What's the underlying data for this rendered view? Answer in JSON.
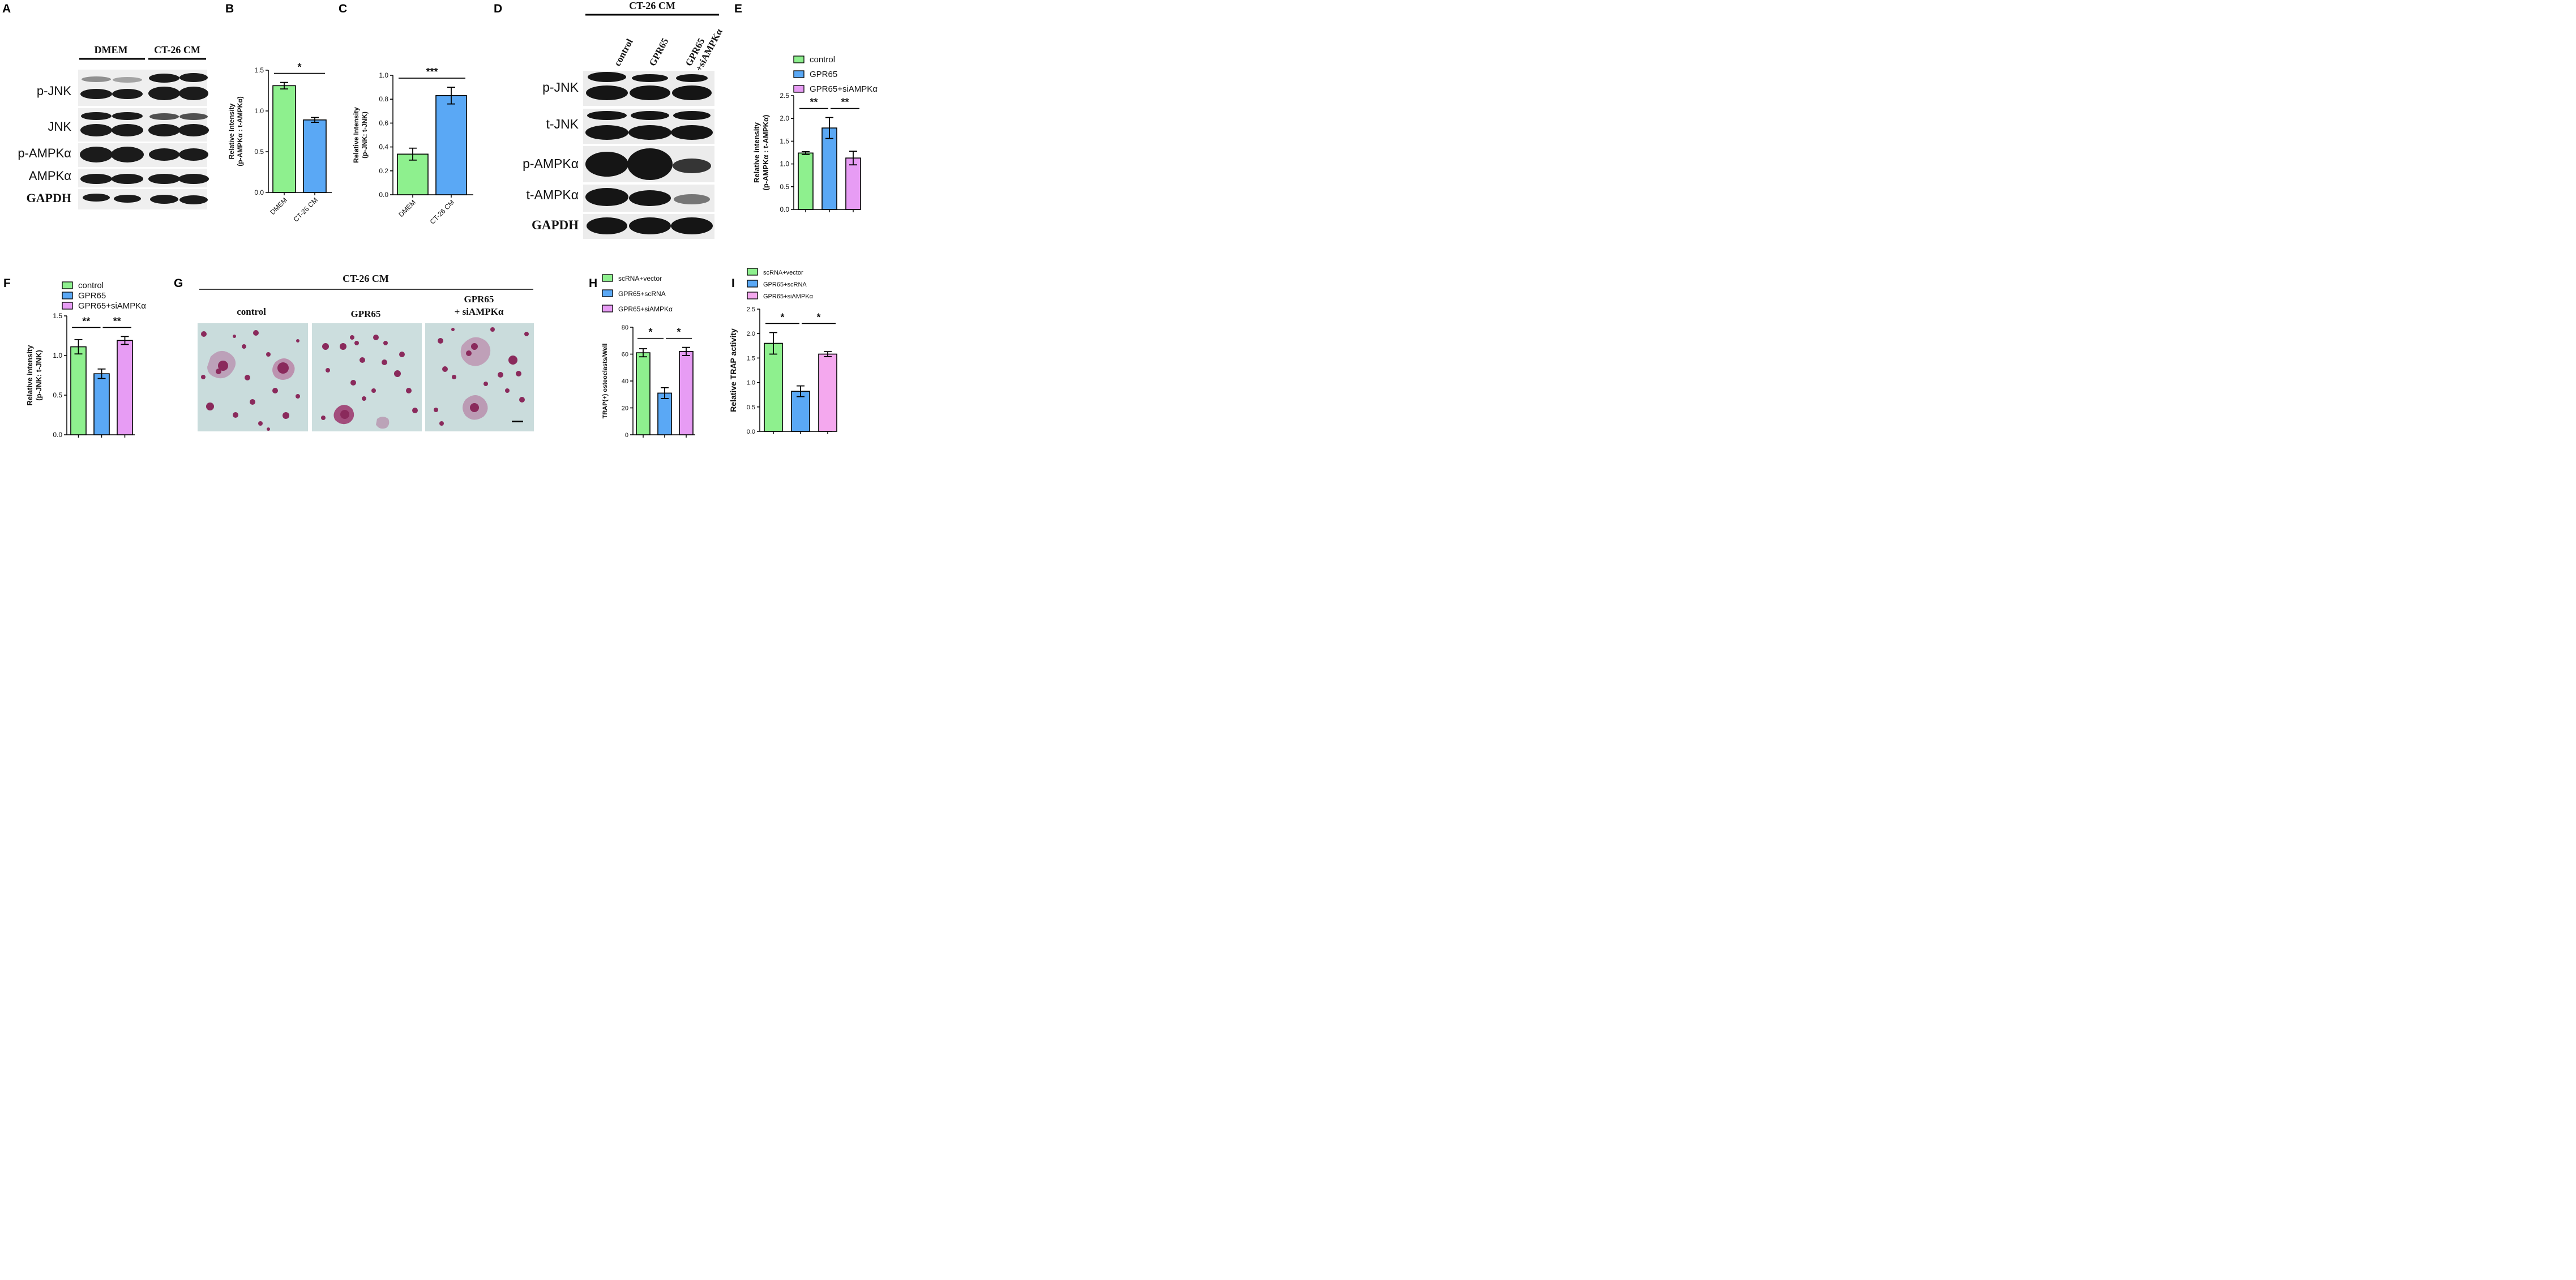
{
  "panel_labels": [
    "A",
    "B",
    "C",
    "D",
    "E",
    "F",
    "G",
    "H",
    "I"
  ],
  "blots": {
    "A": {
      "groups": [
        "DMEM",
        "CT-26 CM"
      ],
      "rows": [
        "p-JNK",
        "JNK",
        "p-AMPKα",
        "AMPKα",
        "GAPDH"
      ]
    },
    "D": {
      "header": "CT-26 CM",
      "lanes": [
        "control",
        "GPR65",
        "GPR65\n+siAMPKα"
      ],
      "rows": [
        "p-JNK",
        "t-JNK",
        "p-AMPKα",
        "t-AMPKα",
        "GAPDH"
      ]
    }
  },
  "micrographs": {
    "header": "CT-26 CM",
    "conditions": [
      "control",
      "GPR65",
      "GPR65\n+ siAMPKα"
    ]
  },
  "colors": {
    "green": "#8ef08e",
    "blue": "#5aa8f5",
    "pink": "#e79cf4",
    "stain_bg": "#c9dcdc",
    "stain": "#8a2a5c"
  },
  "chart_data": [
    {
      "panel": "B",
      "type": "bar",
      "categories": [
        "DMEM",
        "CT-26 CM"
      ],
      "values": [
        1.31,
        0.89
      ],
      "errors": [
        0.04,
        0.03
      ],
      "colors": [
        "#8ef08e",
        "#5aa8f5"
      ],
      "ylabel": "Relative Intensity\n(p-AMPKα : t-AMPKα)",
      "ylim": [
        0,
        1.5
      ],
      "yticks": [
        "0.0",
        "0.5",
        "1.0",
        "1.5"
      ],
      "significance": [
        {
          "from": 0,
          "to": 1,
          "label": "*"
        }
      ]
    },
    {
      "panel": "C",
      "type": "bar",
      "categories": [
        "DMEM",
        "CT-26 CM"
      ],
      "values": [
        0.34,
        0.83
      ],
      "errors": [
        0.05,
        0.07
      ],
      "colors": [
        "#8ef08e",
        "#5aa8f5"
      ],
      "ylabel": "Relative Intensity\n(p-JNK: t-JNK)",
      "ylim": [
        0,
        1.0
      ],
      "yticks": [
        "0.0",
        "0.2",
        "0.4",
        "0.6",
        "0.8",
        "1.0"
      ],
      "significance": [
        {
          "from": 0,
          "to": 1,
          "label": "***"
        }
      ]
    },
    {
      "panel": "E",
      "type": "bar",
      "categories": [
        "control",
        "GPR65",
        "GPR65+siAMPKα"
      ],
      "values": [
        1.24,
        1.79,
        1.13
      ],
      "errors": [
        0.03,
        0.23,
        0.15
      ],
      "colors": [
        "#8ef08e",
        "#5aa8f5",
        "#e79cf4"
      ],
      "legend": [
        "control",
        "GPR65",
        "GPR65+siAMPKα"
      ],
      "ylabel": "Relative intensity\n(p-AMPKα : t-AMPKα)",
      "ylim": [
        0,
        2.5
      ],
      "yticks": [
        "0.0",
        "0.5",
        "1.0",
        "1.5",
        "2.0",
        "2.5"
      ],
      "significance": [
        {
          "from": 0,
          "to": 1,
          "label": "**"
        },
        {
          "from": 1,
          "to": 2,
          "label": "**"
        }
      ]
    },
    {
      "panel": "F",
      "type": "bar",
      "categories": [
        "control",
        "GPR65",
        "GPR65+siAMPKα"
      ],
      "values": [
        1.11,
        0.77,
        1.19
      ],
      "errors": [
        0.09,
        0.06,
        0.05
      ],
      "colors": [
        "#8ef08e",
        "#5aa8f5",
        "#e79cf4"
      ],
      "legend": [
        "control",
        "GPR65",
        "GPR65+siAMPKα"
      ],
      "ylabel": "Relative intensity\n(p-JNK: t-JNK)",
      "ylim": [
        0,
        1.5
      ],
      "yticks": [
        "0.0",
        "0.5",
        "1.0",
        "1.5"
      ],
      "significance": [
        {
          "from": 0,
          "to": 1,
          "label": "**"
        },
        {
          "from": 1,
          "to": 2,
          "label": "**"
        }
      ]
    },
    {
      "panel": "H",
      "type": "bar",
      "categories": [
        "scRNA+vector",
        "GPR65+scRNA",
        "GPR65+siAMPKα"
      ],
      "values": [
        61,
        31,
        62
      ],
      "errors": [
        3,
        4,
        3
      ],
      "colors": [
        "#8ef08e",
        "#5aa8f5",
        "#e79cf4"
      ],
      "legend": [
        "scRNA+vector",
        "GPR65+scRNA",
        "GPR65+siAMPKα"
      ],
      "ylabel": "TRAP(+) osteoclasts/Well",
      "ylim": [
        0,
        80
      ],
      "yticks": [
        "0",
        "20",
        "40",
        "60",
        "80"
      ],
      "significance": [
        {
          "from": 0,
          "to": 1,
          "label": "*"
        },
        {
          "from": 1,
          "to": 2,
          "label": "*"
        }
      ]
    },
    {
      "panel": "I",
      "type": "bar",
      "categories": [
        "scRNA+vector",
        "GPR65+scRNA",
        "GPR65+siAMPKα"
      ],
      "values": [
        1.8,
        0.82,
        1.58
      ],
      "errors": [
        0.22,
        0.11,
        0.05
      ],
      "colors": [
        "#8ef08e",
        "#5aa8f5",
        "#f4a8ee"
      ],
      "legend": [
        "scRNA+vector",
        "GPR65+scRNA",
        "GPR65+siAMPKα"
      ],
      "ylabel": "Relative TRAP activity",
      "ylim": [
        0,
        2.5
      ],
      "yticks": [
        "0.0",
        "0.5",
        "1.0",
        "1.5",
        "2.0",
        "2.5"
      ],
      "significance": [
        {
          "from": 0,
          "to": 1,
          "label": "*"
        },
        {
          "from": 1,
          "to": 2,
          "label": "*"
        }
      ]
    }
  ]
}
